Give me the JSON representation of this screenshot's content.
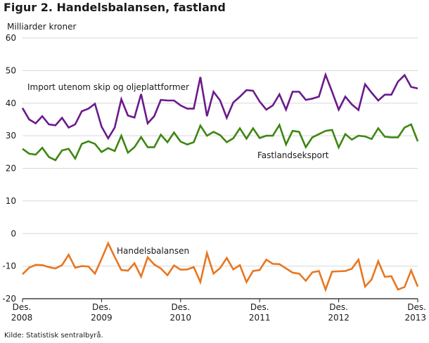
{
  "chart_data": {
    "type": "line",
    "title": "Figur 2. Handelsbalansen, fastland",
    "ylabel": "Milliarder kroner",
    "source": "Kilde: Statistisk sentralbyrå.",
    "ylim": [
      -20,
      60
    ],
    "yticks": [
      60,
      50,
      40,
      30,
      20,
      10,
      0,
      -10,
      -20
    ],
    "xticks": [
      {
        "index": 0,
        "line1": "Des.",
        "line2": "2008"
      },
      {
        "index": 12,
        "line1": "Des.",
        "line2": "2009"
      },
      {
        "index": 24,
        "line1": "Des.",
        "line2": "2010"
      },
      {
        "index": 36,
        "line1": "Des.",
        "line2": "2011"
      },
      {
        "index": 48,
        "line1": "Des.",
        "line2": "2012"
      },
      {
        "index": 60,
        "line1": "Des.",
        "line2": "2013"
      }
    ],
    "grid": true,
    "series": [
      {
        "name": "Import utenom skip og oljeplattformer",
        "color": "#6a1a8c",
        "values": [
          38.5,
          35,
          33.8,
          36,
          33.5,
          33.2,
          35.5,
          32.5,
          33.5,
          37.5,
          38.3,
          39.8,
          32.8,
          29.2,
          32.5,
          41.2,
          36.2,
          35.6,
          42.8,
          33.8,
          36,
          41,
          40.8,
          40.8,
          39.3,
          38.3,
          38.3,
          48,
          36,
          43.5,
          40.8,
          35.5,
          40.2,
          42,
          44,
          43.8,
          40.5,
          38,
          39.3,
          42.7,
          38,
          43.5,
          43.5,
          41,
          41.4,
          42,
          48.7,
          43.5,
          38,
          42,
          39.6,
          37.9,
          45.8,
          43.2,
          40.8,
          42.6,
          42.6,
          46.6,
          48.6,
          45,
          44.5
        ]
      },
      {
        "name": "Fastlandseksport",
        "color": "#3e8713",
        "values": [
          26,
          24.5,
          24.2,
          26.3,
          23.5,
          22.5,
          25.5,
          26,
          23,
          27.5,
          28.3,
          27.5,
          25,
          26.2,
          25.3,
          30,
          24.8,
          26.5,
          29.6,
          26.5,
          26.5,
          30.3,
          28,
          31,
          28.2,
          27.3,
          28,
          33.1,
          30,
          31.2,
          30.2,
          28,
          29.2,
          32.3,
          29.1,
          32.3,
          29.3,
          30,
          30,
          33.3,
          27.3,
          31.5,
          31.2,
          26.5,
          29.5,
          30.5,
          31.5,
          31.8,
          26.4,
          30.5,
          28.8,
          30,
          29.8,
          29,
          32.3,
          29.7,
          29.5,
          29.5,
          32.5,
          33.5,
          28.3
        ]
      },
      {
        "name": "Handelsbalansen",
        "color": "#e87722",
        "values": [
          -12.5,
          -10.5,
          -9.6,
          -9.7,
          -10.3,
          -10.7,
          -9.7,
          -6.5,
          -10.5,
          -10,
          -10.1,
          -12.3,
          -7.8,
          -3,
          -7.2,
          -11.2,
          -11.4,
          -9.1,
          -13.2,
          -7.3,
          -9.5,
          -10.7,
          -12.8,
          -9.8,
          -11.1,
          -11,
          -10.3,
          -14.9,
          -6,
          -12.3,
          -10.6,
          -7.5,
          -11,
          -9.7,
          -14.9,
          -11.5,
          -11.2,
          -8,
          -9.3,
          -9.4,
          -10.7,
          -12,
          -12.3,
          -14.5,
          -11.9,
          -11.5,
          -17.2,
          -11.7,
          -11.6,
          -11.5,
          -10.8,
          -8,
          -16.3,
          -14.1,
          -8.5,
          -13.3,
          -13.1,
          -17.2,
          -16.4,
          -11.3,
          -16.3
        ]
      }
    ],
    "labels": {
      "import": "Import utenom skip og oljeplattformer",
      "export": "Fastlandseksport",
      "balance": "Handelsbalansen"
    }
  }
}
